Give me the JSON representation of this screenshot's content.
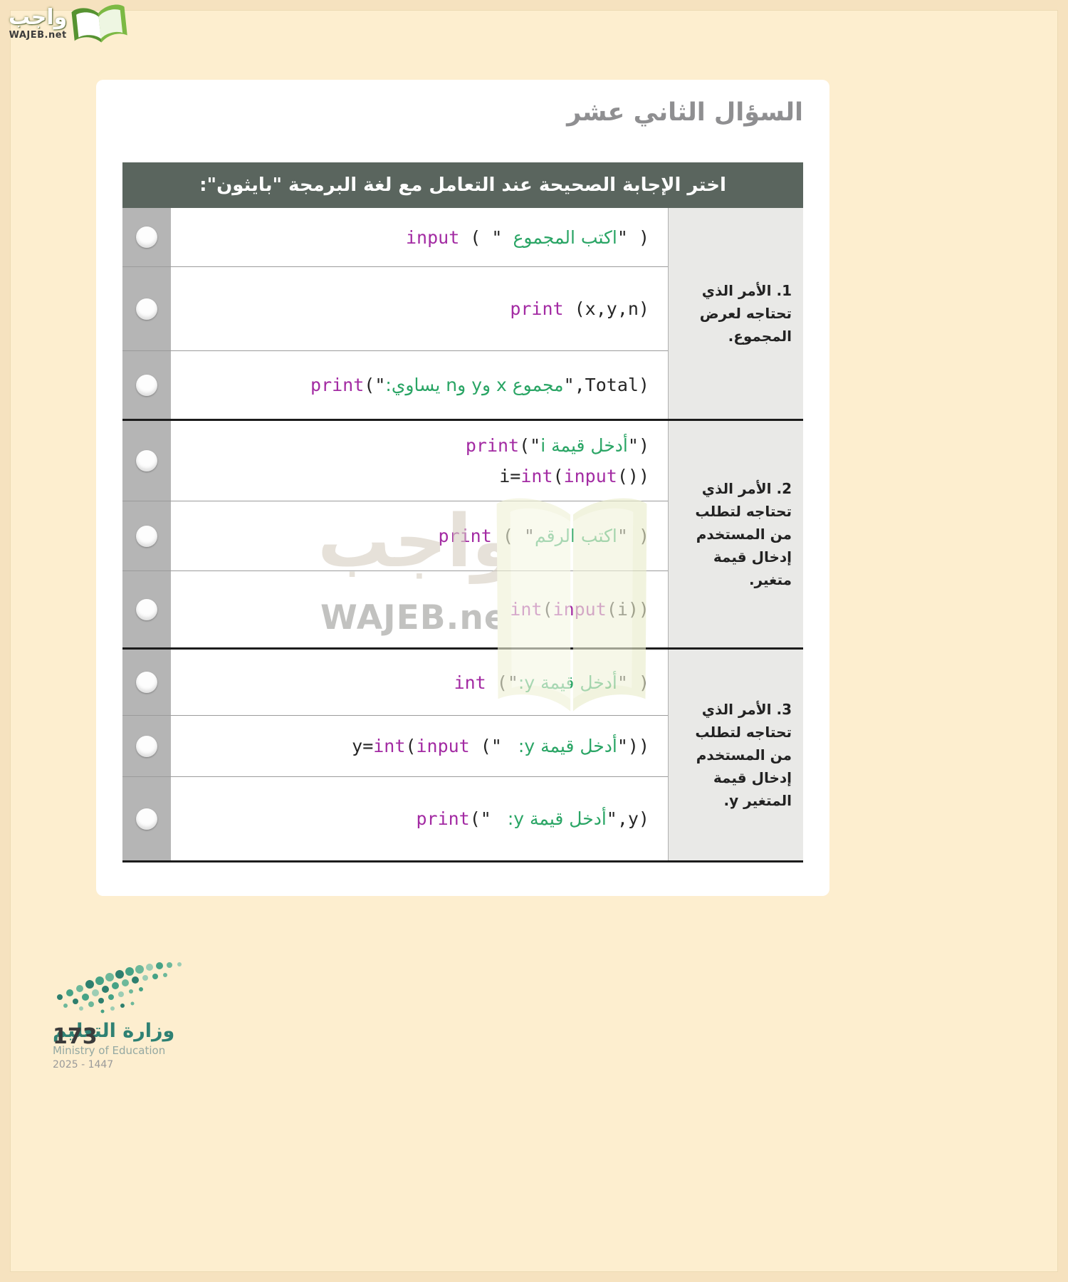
{
  "theme": {
    "page_bg": "#f6e2bf",
    "page_inner_bg": "#fdeecf",
    "card_bg": "#ffffff",
    "header_bg": "#5a655e",
    "header_text": "#ffffff",
    "radio_col_bg": "#b5b5b5",
    "label_col_bg": "#e9e9e7",
    "code_keyword": "#a32ba3",
    "code_string": "#2aa565",
    "code_plain": "#262626",
    "title_color": "#8f8f91",
    "thick_line": "#1c1c1c",
    "thin_line": "#9b9b9b"
  },
  "brand": {
    "name": "واجب",
    "site": "WAJEB.net"
  },
  "watermark": {
    "name": "واجب",
    "site": "WAJEB.net"
  },
  "page": {
    "title": "السؤال الثاني عشر"
  },
  "header": {
    "prompt": "اختر الإجابة الصحيحة عند التعامل مع لغة البرمجة \"بايثون\":"
  },
  "sections": [
    {
      "label": "1. الأمر الذي تحتاجه لعرض المجموع.",
      "options": [
        {
          "lines": [
            [
              {
                "t": "input",
                "c": "k"
              },
              {
                "t": " ( \" ",
                "c": "p"
              },
              {
                "t": "اكتب المجموع",
                "c": "s",
                "r": 1
              },
              {
                "t": "\" )",
                "c": "p"
              }
            ]
          ]
        },
        {
          "lines": [
            [
              {
                "t": "print",
                "c": "k"
              },
              {
                "t": " (x,y,n)",
                "c": "p"
              }
            ]
          ]
        },
        {
          "lines": [
            [
              {
                "t": "print",
                "c": "k"
              },
              {
                "t": "(\"",
                "c": "p"
              },
              {
                "t": "مجموع x وy وn يساوي:",
                "c": "s",
                "r": 1
              },
              {
                "t": "\",Total)",
                "c": "p"
              }
            ]
          ]
        }
      ]
    },
    {
      "label": "2. الأمر الذي تحتاجه لتطلب من المستخدم إدخال قيمة متغير.",
      "options": [
        {
          "lines": [
            [
              {
                "t": "print",
                "c": "k"
              },
              {
                "t": "(\"",
                "c": "p"
              },
              {
                "t": "أدخل قيمة i",
                "c": "s",
                "r": 1
              },
              {
                "t": "\")",
                "c": "p"
              }
            ],
            [
              {
                "t": "i=",
                "c": "p"
              },
              {
                "t": "int",
                "c": "k"
              },
              {
                "t": "(",
                "c": "p"
              },
              {
                "t": "input",
                "c": "k"
              },
              {
                "t": "())",
                "c": "p"
              }
            ]
          ]
        },
        {
          "lines": [
            [
              {
                "t": "print",
                "c": "k"
              },
              {
                "t": " ( \"",
                "c": "p"
              },
              {
                "t": "اكتب الرقم",
                "c": "s",
                "r": 1
              },
              {
                "t": "\" )",
                "c": "p"
              }
            ]
          ]
        },
        {
          "lines": [
            [
              {
                "t": "int",
                "c": "k"
              },
              {
                "t": "(",
                "c": "p"
              },
              {
                "t": "input",
                "c": "k"
              },
              {
                "t": "(i))",
                "c": "p"
              }
            ]
          ]
        }
      ]
    },
    {
      "label": "3. الأمر الذي تحتاجه لتطلب من المستخدم إدخال قيمة المتغير y.",
      "options": [
        {
          "lines": [
            [
              {
                "t": "int",
                "c": "k"
              },
              {
                "t": " (\"",
                "c": "p"
              },
              {
                "t": "أدخل قيمة y:",
                "c": "s",
                "r": 1
              },
              {
                "t": "\" )",
                "c": "p"
              }
            ]
          ]
        },
        {
          "lines": [
            [
              {
                "t": "y=",
                "c": "p"
              },
              {
                "t": "int",
                "c": "k"
              },
              {
                "t": "(",
                "c": "p"
              },
              {
                "t": "input",
                "c": "k"
              },
              {
                "t": " (\" ",
                "c": "p"
              },
              {
                "t": "أدخل قيمة y: ",
                "c": "s",
                "r": 1
              },
              {
                "t": "\"))",
                "c": "p"
              }
            ]
          ]
        },
        {
          "lines": [
            [
              {
                "t": "print",
                "c": "k"
              },
              {
                "t": "(\" ",
                "c": "p"
              },
              {
                "t": "أدخل قيمة y: ",
                "c": "s",
                "r": 1
              },
              {
                "t": "\",y)",
                "c": "p"
              }
            ]
          ]
        }
      ]
    }
  ],
  "footer": {
    "page_number": "173",
    "ministry_ar": "وزارة التعليم",
    "ministry_en": "Ministry of Education",
    "years": "2025 - 1447"
  }
}
